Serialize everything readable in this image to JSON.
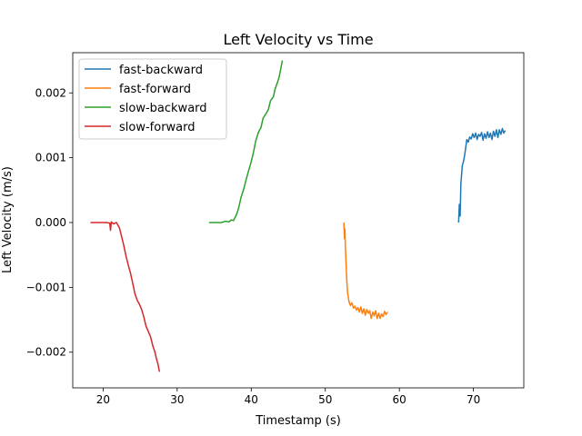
{
  "chart_data": {
    "type": "line",
    "title": "Left Velocity vs Time",
    "xlabel": "Timestamp (s)",
    "ylabel": "Left Velocity (m/s)",
    "xlim": [
      15.9,
      76.8
    ],
    "ylim": [
      -0.00255,
      0.00262
    ],
    "xticks": [
      20,
      30,
      40,
      50,
      60,
      70
    ],
    "xtick_labels": [
      "20",
      "30",
      "40",
      "50",
      "60",
      "70"
    ],
    "yticks": [
      -0.002,
      -0.001,
      0.0,
      0.001,
      0.002
    ],
    "ytick_labels": [
      "−0.002",
      "−0.001",
      "0.000",
      "0.001",
      "0.002"
    ],
    "grid": false,
    "legend_position": "top-left",
    "series": [
      {
        "name": "fast-backward",
        "color": "#1f77b4",
        "x": [
          68.0,
          68.1,
          68.2,
          68.25,
          68.3,
          68.5,
          68.7,
          68.9,
          69.1,
          69.3,
          69.5,
          69.7,
          69.9,
          70.1,
          70.3,
          70.5,
          70.7,
          70.9,
          71.1,
          71.3,
          71.5,
          71.7,
          71.9,
          72.1,
          72.3,
          72.5,
          72.7,
          72.9,
          73.1,
          73.3,
          73.5,
          73.7,
          73.9,
          74.1,
          74.3
        ],
        "y": [
          0.0,
          0.00028,
          0.0001,
          0.00035,
          0.0006,
          0.00088,
          0.00096,
          0.00111,
          0.00128,
          0.00124,
          0.00132,
          0.00129,
          0.00137,
          0.00131,
          0.00138,
          0.00128,
          0.00136,
          0.00133,
          0.00139,
          0.00127,
          0.00137,
          0.0013,
          0.0014,
          0.00131,
          0.00138,
          0.00128,
          0.00141,
          0.00133,
          0.00143,
          0.00131,
          0.00143,
          0.00136,
          0.00145,
          0.00138,
          0.00142
        ]
      },
      {
        "name": "fast-forward",
        "color": "#ff7f0e",
        "x": [
          52.5,
          52.6,
          52.65,
          52.7,
          52.8,
          52.9,
          53.0,
          53.2,
          53.4,
          53.6,
          53.8,
          54.0,
          54.2,
          54.4,
          54.6,
          54.8,
          55.0,
          55.2,
          55.4,
          55.6,
          55.8,
          56.0,
          56.2,
          56.4,
          56.6,
          56.8,
          57.0,
          57.2,
          57.4,
          57.6,
          57.8,
          58.0,
          58.2,
          58.4
        ],
        "y": [
          0.0,
          -0.00025,
          -0.0001,
          -0.00032,
          -0.00062,
          -0.00088,
          -0.00108,
          -0.00122,
          -0.00128,
          -0.00124,
          -0.00132,
          -0.00129,
          -0.00135,
          -0.00131,
          -0.00138,
          -0.0013,
          -0.0014,
          -0.00133,
          -0.00143,
          -0.00134,
          -0.0014,
          -0.00136,
          -0.00148,
          -0.00138,
          -0.00144,
          -0.00136,
          -0.00148,
          -0.0014,
          -0.00148,
          -0.00141,
          -0.00145,
          -0.00137,
          -0.00142,
          -0.00138
        ]
      },
      {
        "name": "slow-backward",
        "color": "#2ca02c",
        "x": [
          34.3,
          35.0,
          36.0,
          36.5,
          37.0,
          37.3,
          37.6,
          38.0,
          38.3,
          38.6,
          39.0,
          39.3,
          39.6,
          40.0,
          40.3,
          40.6,
          41.0,
          41.3,
          41.6,
          42.0,
          42.3,
          42.6,
          43.0,
          43.2,
          43.4,
          43.6,
          43.8,
          44.0,
          44.2
        ],
        "y": [
          0.0,
          0.0,
          0.0,
          2e-05,
          1e-05,
          4e-05,
          3e-05,
          0.00012,
          0.00022,
          0.00038,
          0.00052,
          0.00066,
          0.00078,
          0.00094,
          0.00108,
          0.00126,
          0.0014,
          0.00146,
          0.00161,
          0.00168,
          0.00174,
          0.00188,
          0.00194,
          0.00205,
          0.00212,
          0.00218,
          0.00226,
          0.00238,
          0.0025
        ]
      },
      {
        "name": "slow-forward",
        "color": "#d62728",
        "x": [
          18.3,
          19.0,
          20.0,
          20.5,
          20.9,
          21.0,
          21.1,
          21.4,
          21.8,
          22.2,
          22.5,
          22.8,
          23.1,
          23.4,
          23.7,
          24.0,
          24.3,
          24.6,
          24.9,
          25.2,
          25.5,
          25.8,
          26.1,
          26.4,
          26.7,
          27.0,
          27.2,
          27.4,
          27.6
        ],
        "y": [
          0.0,
          0.0,
          0.0,
          0.0,
          -1e-05,
          -0.00012,
          1e-05,
          -2e-05,
          0.0,
          -8e-05,
          -0.00022,
          -0.00036,
          -0.00052,
          -0.00066,
          -0.00078,
          -0.00094,
          -0.0011,
          -0.0012,
          -0.00126,
          -0.00134,
          -0.00146,
          -0.0016,
          -0.00168,
          -0.00176,
          -0.0019,
          -0.002,
          -0.0021,
          -0.00218,
          -0.0023
        ]
      }
    ]
  }
}
